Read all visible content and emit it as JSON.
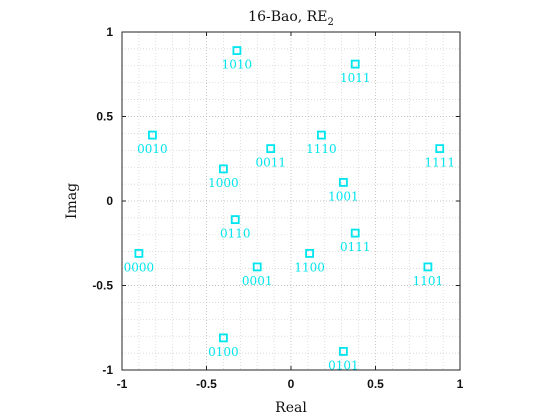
{
  "chart_data": {
    "type": "scatter",
    "title_main": "16-Bao, RE",
    "title_sub": "2",
    "xlabel": "Real",
    "ylabel": "Imag",
    "xlim": [
      -1,
      1
    ],
    "ylim": [
      -1,
      1
    ],
    "xticks": [
      -1,
      -0.5,
      0,
      0.5,
      1
    ],
    "xtick_labels": [
      "-1",
      "-0.5",
      "0",
      "0.5",
      "1"
    ],
    "yticks": [
      -1,
      -0.5,
      0,
      0.5,
      1
    ],
    "ytick_labels": [
      "-1",
      "-0.5",
      "0",
      "0.5",
      "1"
    ],
    "grid": "dotted-minor",
    "marker": "square",
    "color": "#00e5ee",
    "points": [
      {
        "label": "1010",
        "x": -0.32,
        "y": 0.89
      },
      {
        "label": "1011",
        "x": 0.38,
        "y": 0.81
      },
      {
        "label": "0010",
        "x": -0.82,
        "y": 0.39
      },
      {
        "label": "1110",
        "x": 0.18,
        "y": 0.39
      },
      {
        "label": "0011",
        "x": -0.12,
        "y": 0.31
      },
      {
        "label": "1111",
        "x": 0.88,
        "y": 0.31
      },
      {
        "label": "1000",
        "x": -0.4,
        "y": 0.19
      },
      {
        "label": "1001",
        "x": 0.31,
        "y": 0.11
      },
      {
        "label": "0110",
        "x": -0.33,
        "y": -0.11
      },
      {
        "label": "0111",
        "x": 0.38,
        "y": -0.19
      },
      {
        "label": "0000",
        "x": -0.9,
        "y": -0.31
      },
      {
        "label": "1100",
        "x": 0.11,
        "y": -0.31
      },
      {
        "label": "0001",
        "x": -0.2,
        "y": -0.39
      },
      {
        "label": "1101",
        "x": 0.81,
        "y": -0.39
      },
      {
        "label": "0100",
        "x": -0.4,
        "y": -0.81
      },
      {
        "label": "0101",
        "x": 0.31,
        "y": -0.89
      }
    ]
  }
}
